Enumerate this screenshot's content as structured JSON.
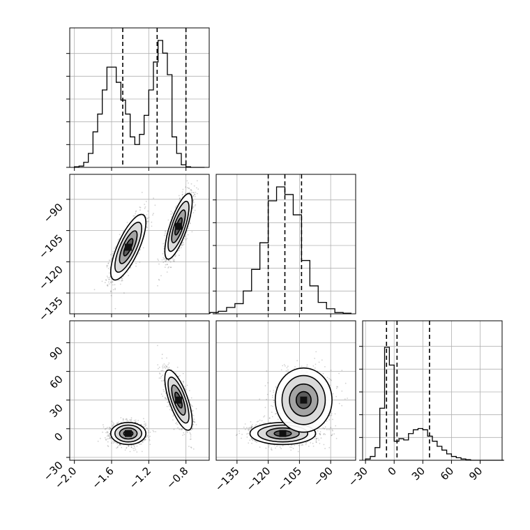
{
  "chart_data": {
    "type": "corner",
    "title": "",
    "grid": true,
    "params": [
      {
        "range": [
          -2.05,
          -0.55
        ],
        "ticks": [
          -2.0,
          -1.6,
          -1.2,
          -0.8
        ],
        "tick_labels": [
          "−2.0",
          "−1.6",
          "−1.2",
          "−0.8"
        ],
        "quantiles": [
          -1.48,
          -1.11,
          -0.8
        ]
      },
      {
        "range": [
          -145,
          -78
        ],
        "ticks": [
          -135,
          -120,
          -105,
          -90
        ],
        "tick_labels": [
          "−135",
          "−120",
          "−105",
          "−90"
        ],
        "quantiles": [
          -120,
          -112,
          -104
        ]
      },
      {
        "range": [
          -33,
          113
        ],
        "ticks": [
          -30,
          0,
          30,
          60,
          90
        ],
        "tick_labels": [
          "−30",
          "0",
          "30",
          "60",
          "90"
        ],
        "quantiles": [
          -8,
          3,
          37
        ]
      }
    ],
    "histograms": [
      {
        "param": 0,
        "edges": [
          -2.0,
          -1.95,
          -1.9,
          -1.85,
          -1.8,
          -1.75,
          -1.7,
          -1.65,
          -1.6,
          -1.55,
          -1.5,
          -1.45,
          -1.4,
          -1.35,
          -1.3,
          -1.25,
          -1.2,
          -1.15,
          -1.1,
          -1.05,
          -1.0,
          -0.95,
          -0.9,
          -0.85,
          -0.8,
          -0.75,
          -0.7,
          -0.65,
          -0.6
        ],
        "counts": [
          0.005,
          0.01,
          0.04,
          0.11,
          0.28,
          0.42,
          0.61,
          0.79,
          0.79,
          0.67,
          0.53,
          0.42,
          0.24,
          0.18,
          0.26,
          0.41,
          0.61,
          0.83,
          1.0,
          0.9,
          0.73,
          0.24,
          0.11,
          0.02,
          0.005,
          0.0,
          0.0,
          0.0
        ]
      },
      {
        "param": 1,
        "edges": [
          -148,
          -144,
          -140,
          -136,
          -132,
          -128,
          -124,
          -120,
          -116,
          -112,
          -108,
          -104,
          -100,
          -96,
          -92,
          -88,
          -84,
          -80
        ],
        "counts": [
          0.01,
          0.02,
          0.05,
          0.08,
          0.18,
          0.35,
          0.56,
          0.89,
          1.0,
          0.94,
          0.78,
          0.42,
          0.22,
          0.09,
          0.04,
          0.01,
          0.005
        ]
      },
      {
        "param": 2,
        "edges": [
          -30,
          -25,
          -20,
          -15,
          -10,
          -5,
          0,
          5,
          10,
          15,
          20,
          25,
          30,
          35,
          40,
          45,
          50,
          55,
          60,
          65,
          70,
          75,
          80,
          85,
          90,
          95,
          100,
          105,
          110,
          115
        ],
        "counts": [
          0.01,
          0.03,
          0.1,
          0.41,
          0.89,
          0.75,
          0.15,
          0.17,
          0.16,
          0.21,
          0.24,
          0.25,
          0.24,
          0.19,
          0.15,
          0.11,
          0.08,
          0.05,
          0.03,
          0.02,
          0.01,
          0.005,
          0.0,
          0.0,
          0.0,
          0.0,
          0.0,
          0.0,
          0.0
        ]
      }
    ],
    "scatter": [
      {
        "x_param": 0,
        "y_param": 1,
        "components": [
          {
            "mean": [
              -1.42,
              -113
            ],
            "sd": [
              0.09,
              7.5
            ],
            "angle_deg": 40,
            "weight": 0.48,
            "rho": 0.75
          },
          {
            "mean": [
              -0.88,
              -103
            ],
            "sd": [
              0.07,
              7.5
            ],
            "angle_deg": 55,
            "weight": 0.52,
            "rho": 0.75
          }
        ]
      },
      {
        "x_param": 0,
        "y_param": 2,
        "components": [
          {
            "mean": [
              -1.42,
              -5
            ],
            "sd": [
              0.09,
              5.5
            ],
            "weight": 0.55,
            "rho": 0.0
          },
          {
            "mean": [
              -0.88,
              30
            ],
            "sd": [
              0.07,
              15
            ],
            "weight": 0.45,
            "rho": -0.7
          }
        ]
      },
      {
        "x_param": 1,
        "y_param": 2,
        "components": [
          {
            "mean": [
              -113,
              -5
            ],
            "sd": [
              7.5,
              5.5
            ],
            "weight": 0.55,
            "rho": 0.0
          },
          {
            "mean": [
              -103,
              30
            ],
            "sd": [
              6.5,
              16
            ],
            "weight": 0.45,
            "rho": 0.0
          }
        ]
      }
    ]
  }
}
